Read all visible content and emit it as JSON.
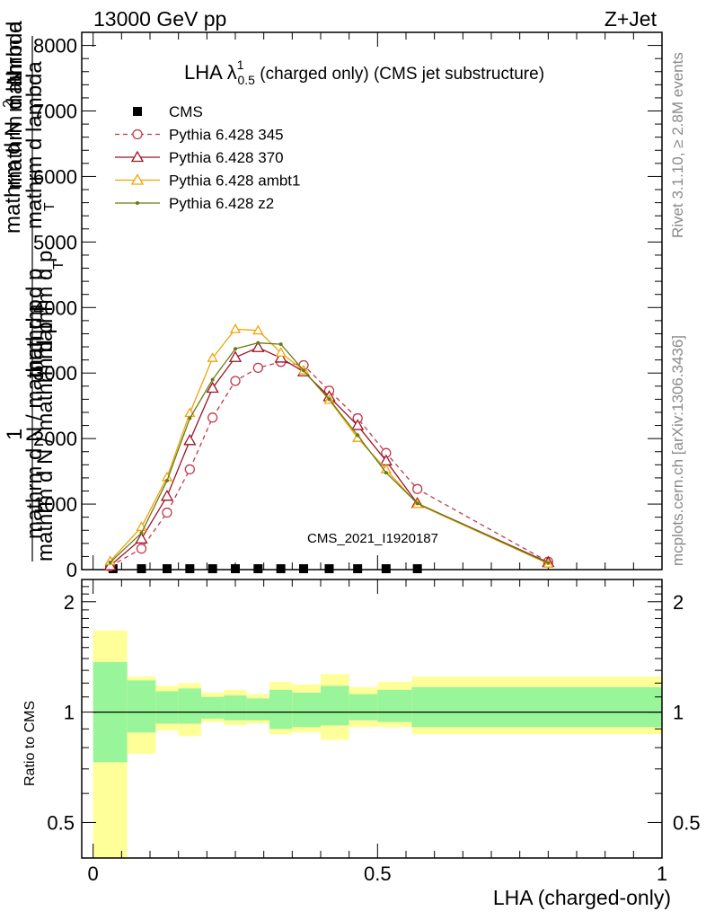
{
  "header": {
    "left": "13000 GeV pp",
    "right": "Z+Jet"
  },
  "side": {
    "rivet": "Rivet 3.1.10, ≥ 2.8M events",
    "mcplots": "mcplots.cern.ch [arXiv:1306.3436]"
  },
  "chart_data": [
    {
      "type": "line",
      "title_main": "LHA λ",
      "title_sup": "1",
      "title_sub": "0.5",
      "title_rest": " (charged only) (CMS jet substructure)",
      "ylabel_top": "1",
      "ylabel_lines": [
        "mathrm d N / mathrm d p",
        "mathrm d p",
        "mathrm d lambda"
      ],
      "ylabel_parts": [
        "mathrm d N",
        "mathrm d N / mathrm d p",
        "T",
        "mathrm d p",
        "T",
        "mathrm d lambda",
        "mathrm d",
        "2",
        "N"
      ],
      "watermark": "CMS_2021_I1920187",
      "xlim": [
        -0.02,
        1.0
      ],
      "ylim": [
        0,
        8200
      ],
      "yticks": [
        0,
        1000,
        2000,
        3000,
        4000,
        5000,
        6000,
        7000,
        8000
      ],
      "ytick_labels": [
        "0",
        "1000",
        "2000",
        "3000",
        "4000",
        "5000",
        "6000",
        "7000",
        "8000"
      ],
      "legend_position": "top-left",
      "series": [
        {
          "name": "CMS",
          "color": "#000000",
          "marker": "square",
          "x": [
            0.035,
            0.085,
            0.13,
            0.17,
            0.21,
            0.25,
            0.29,
            0.33,
            0.37,
            0.415,
            0.465,
            0.515,
            0.57
          ],
          "y": [
            0,
            0,
            0,
            0,
            0,
            0,
            0,
            0,
            0,
            0,
            0,
            0,
            0
          ]
        },
        {
          "name": "Pythia 6.428 345",
          "color": "#c0394b",
          "marker": "circle-open",
          "dashed": true,
          "x": [
            0.03,
            0.085,
            0.13,
            0.17,
            0.21,
            0.25,
            0.29,
            0.33,
            0.37,
            0.415,
            0.465,
            0.515,
            0.57,
            0.8
          ],
          "y": [
            50,
            320,
            870,
            1530,
            2320,
            2880,
            3080,
            3170,
            3120,
            2730,
            2310,
            1780,
            1230,
            120
          ]
        },
        {
          "name": "Pythia 6.428 370",
          "color": "#9b1427",
          "marker": "triangle-open",
          "x": [
            0.03,
            0.085,
            0.13,
            0.17,
            0.21,
            0.25,
            0.29,
            0.33,
            0.37,
            0.415,
            0.465,
            0.515,
            0.57,
            0.8
          ],
          "y": [
            60,
            470,
            1120,
            1970,
            2770,
            3240,
            3390,
            3230,
            3020,
            2640,
            2200,
            1660,
            1010,
            110
          ]
        },
        {
          "name": "Pythia 6.428 ambt1",
          "color": "#f0a30a",
          "marker": "triangle-open",
          "x": [
            0.03,
            0.085,
            0.13,
            0.17,
            0.21,
            0.25,
            0.29,
            0.33,
            0.37,
            0.415,
            0.465,
            0.515,
            0.57,
            0.8
          ],
          "y": [
            130,
            650,
            1410,
            2390,
            3230,
            3670,
            3650,
            3310,
            3040,
            2590,
            2010,
            1530,
            1000,
            90
          ]
        },
        {
          "name": "Pythia 6.428 z2",
          "color": "#6b7a12",
          "marker": "dot",
          "x": [
            0.03,
            0.085,
            0.13,
            0.17,
            0.21,
            0.25,
            0.29,
            0.33,
            0.37,
            0.415,
            0.465,
            0.515,
            0.57,
            0.8
          ],
          "y": [
            110,
            560,
            1360,
            2310,
            2900,
            3370,
            3460,
            3440,
            3040,
            2600,
            2050,
            1480,
            1010,
            100
          ]
        }
      ]
    },
    {
      "type": "area",
      "ylabel": "Ratio to CMS",
      "xlabel": "LHA (charged-only)",
      "xlim": [
        -0.02,
        1.0
      ],
      "ylim": [
        0.4,
        2.3
      ],
      "log_y": true,
      "yticks": [
        0.5,
        1,
        2
      ],
      "ytick_labels": [
        "0.5",
        "1",
        "2"
      ],
      "xticks": [
        0,
        0.5,
        1
      ],
      "xtick_labels": [
        "0",
        "0.5",
        "1"
      ],
      "bin_edges": [
        0,
        0.06,
        0.11,
        0.15,
        0.19,
        0.23,
        0.27,
        0.31,
        0.35,
        0.4,
        0.45,
        0.5,
        0.56,
        1.0
      ],
      "stat_band_lo": [
        0.73,
        0.88,
        0.93,
        0.93,
        0.96,
        0.95,
        0.95,
        0.9,
        0.91,
        0.92,
        0.95,
        0.94,
        0.91
      ],
      "stat_band_hi": [
        1.37,
        1.22,
        1.14,
        1.16,
        1.1,
        1.11,
        1.09,
        1.15,
        1.13,
        1.18,
        1.12,
        1.15,
        1.17
      ],
      "syst_band_lo": [
        0.34,
        0.77,
        0.89,
        0.86,
        0.94,
        0.92,
        0.93,
        0.87,
        0.88,
        0.84,
        0.91,
        0.91,
        0.87
      ],
      "syst_band_hi": [
        1.67,
        1.25,
        1.18,
        1.2,
        1.13,
        1.15,
        1.12,
        1.21,
        1.19,
        1.27,
        1.17,
        1.21,
        1.25
      ],
      "stat_color": "#99f599",
      "syst_color": "#ffff99",
      "reference": 1
    }
  ]
}
